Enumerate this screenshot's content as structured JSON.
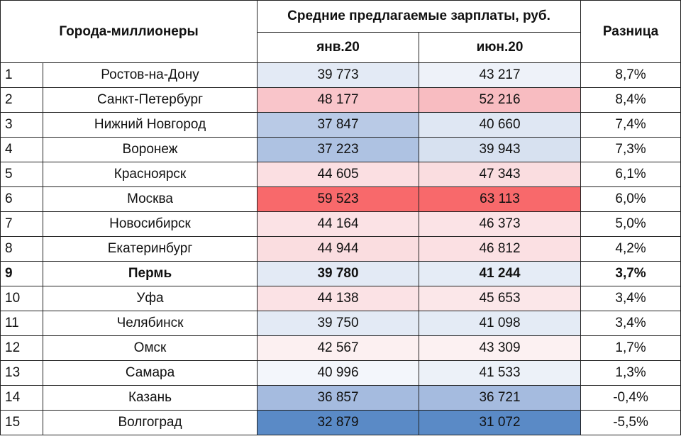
{
  "header": {
    "cities": "Города-миллионеры",
    "salaries": "Средние предлагаемые зарплаты, руб.",
    "jan": "янв.20",
    "jun": "июн.20",
    "diff": "Разница"
  },
  "rows": [
    {
      "n": "1",
      "city": "Ростов-на-Дону",
      "jan": "39 773",
      "jun": "43 217",
      "diff": "8,7%",
      "jan_color": "#e3eaf5",
      "jun_color": "#eef2f9",
      "bold": false
    },
    {
      "n": "2",
      "city": "Санкт-Петербург",
      "jan": "48 177",
      "jun": "52 216",
      "diff": "8,4%",
      "jan_color": "#f9c5ca",
      "jun_color": "#f8bcc1",
      "bold": false
    },
    {
      "n": "3",
      "city": "Нижний Новгород",
      "jan": "37 847",
      "jun": "40 660",
      "diff": "7,4%",
      "jan_color": "#b9cae6",
      "jun_color": "#dfe7f3",
      "bold": false
    },
    {
      "n": "4",
      "city": "Воронеж",
      "jan": "37 223",
      "jun": "39 943",
      "diff": "7,3%",
      "jan_color": "#aec2e2",
      "jun_color": "#d7e1f0",
      "bold": false
    },
    {
      "n": "5",
      "city": "Красноярск",
      "jan": "44 605",
      "jun": "47 343",
      "diff": "6,1%",
      "jan_color": "#fbdfe2",
      "jun_color": "#fadde0",
      "bold": false
    },
    {
      "n": "6",
      "city": "Москва",
      "jan": "59 523",
      "jun": "63 113",
      "diff": "6,0%",
      "jan_color": "#f8696b",
      "jun_color": "#f8696b",
      "bold": false
    },
    {
      "n": "7",
      "city": "Новосибирск",
      "jan": "44 164",
      "jun": "46 373",
      "diff": "5,0%",
      "jan_color": "#fbe2e5",
      "jun_color": "#fbe3e6",
      "bold": false
    },
    {
      "n": "8",
      "city": "Екатеринбург",
      "jan": "44 944",
      "jun": "46 812",
      "diff": "4,2%",
      "jan_color": "#fadde0",
      "jun_color": "#fbe0e3",
      "bold": false
    },
    {
      "n": "9",
      "city": "Пермь",
      "jan": "39 780",
      "jun": "41 244",
      "diff": "3,7%",
      "jan_color": "#e3eaf5",
      "jun_color": "#e5ecf6",
      "bold": true
    },
    {
      "n": "10",
      "city": "Уфа",
      "jan": "44 138",
      "jun": "45 653",
      "diff": "3,4%",
      "jan_color": "#fbe2e5",
      "jun_color": "#fbe7e9",
      "bold": false
    },
    {
      "n": "11",
      "city": "Челябинск",
      "jan": "39 750",
      "jun": "41 098",
      "diff": "3,4%",
      "jan_color": "#e3eaf5",
      "jun_color": "#e4ebf5",
      "bold": false
    },
    {
      "n": "12",
      "city": "Омск",
      "jan": "42 567",
      "jun": "43 309",
      "diff": "1,7%",
      "jan_color": "#fcf0f1",
      "jun_color": "#fcf1f2",
      "bold": false
    },
    {
      "n": "13",
      "city": "Самара",
      "jan": "40 996",
      "jun": "41 533",
      "diff": "1,3%",
      "jan_color": "#f3f6fb",
      "jun_color": "#ecf1f8",
      "bold": false
    },
    {
      "n": "14",
      "city": "Казань",
      "jan": "36 857",
      "jun": "36 721",
      "diff": "-0,4%",
      "jan_color": "#a5bbdf",
      "jun_color": "#a5bbdf",
      "bold": false
    },
    {
      "n": "15",
      "city": "Волгоград",
      "jan": "32 879",
      "jun": "31 072",
      "diff": "-5,5%",
      "jan_color": "#5a8ac6",
      "jun_color": "#5a8ac6",
      "bold": false
    }
  ]
}
